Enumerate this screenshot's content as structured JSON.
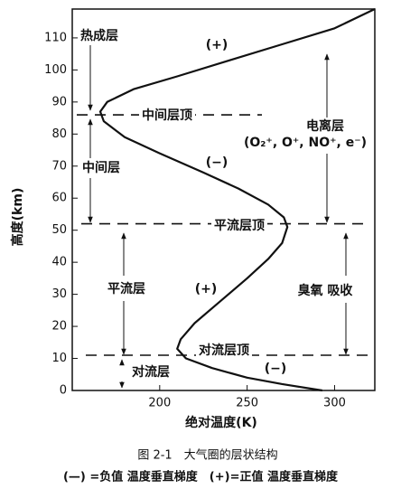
{
  "chart_data": {
    "type": "line",
    "x_label": "绝对温度(K)",
    "y_label": "高度(km)",
    "caption": "图 2-1　大气圈的层状结构",
    "note": "(—) =负值 温度垂直梯度　(+)=正值 温度垂直梯度",
    "x": [
      293,
      270,
      250,
      230,
      215,
      210,
      212,
      220,
      235,
      250,
      262,
      270,
      273,
      271,
      262,
      245,
      225,
      200,
      180,
      168,
      166,
      170,
      185,
      210,
      240,
      270,
      300,
      323
    ],
    "values": [
      0,
      2,
      4,
      7,
      10,
      13,
      16,
      21,
      28,
      35,
      41,
      46,
      51,
      54,
      58,
      63,
      68,
      74,
      79,
      84,
      87,
      90,
      94,
      98,
      103,
      108,
      113,
      119
    ],
    "color": "#111111",
    "xlim": [
      150,
      323
    ],
    "ylim": [
      0,
      119
    ],
    "xticks": [
      200,
      250,
      300
    ],
    "yticks": [
      0,
      10,
      20,
      30,
      40,
      50,
      60,
      70,
      80,
      90,
      100,
      110
    ],
    "levels": [
      86,
      52,
      11
    ],
    "annotations": [
      "热成层",
      "(+)",
      "中间层顶",
      "电离层",
      "(O₂⁺, O⁺, NO⁺, e⁻)",
      "(−)",
      "中间层",
      "平流层顶",
      "平流层",
      "(+)",
      "臭氧  吸收",
      "对流层顶",
      "对流层",
      "(−)"
    ]
  }
}
